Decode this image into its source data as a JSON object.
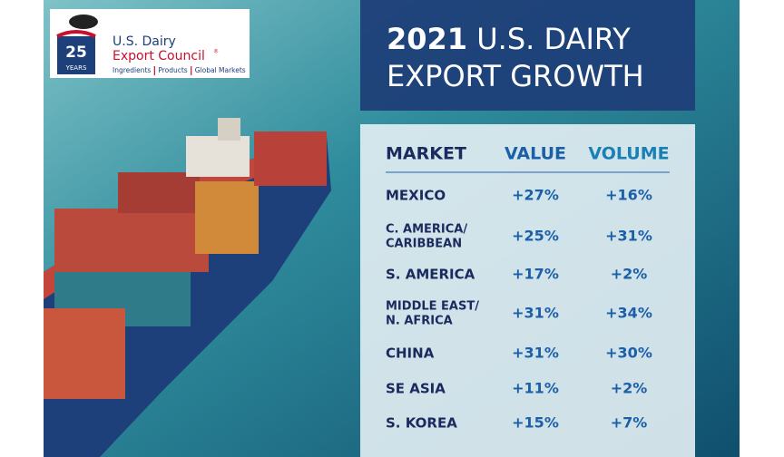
{
  "logo": {
    "years_number": "25",
    "years_word": "YEARS",
    "name_line1": "U.S. Dairy",
    "name_line2": "Export Council",
    "registered": "®",
    "tagline": [
      "Ingredients",
      "Products",
      "Global Markets"
    ]
  },
  "title": {
    "year": "2021",
    "line1": "U.S. DAIRY",
    "line2": "EXPORT GROWTH"
  },
  "table": {
    "header": [
      "MARKET",
      "VALUE",
      "VOLUME"
    ],
    "rows": [
      [
        [
          "MEXICO"
        ],
        "+27%",
        "+16%"
      ],
      [
        [
          "C. AMERICA/",
          "CARIBBEAN"
        ],
        "+25%",
        "+31%"
      ],
      [
        [
          "S. AMERICA"
        ],
        "+17%",
        "+2%"
      ],
      [
        [
          "MIDDLE EAST/",
          "N. AFRICA"
        ],
        "+31%",
        "+34%"
      ],
      [
        [
          "CHINA"
        ],
        "+31%",
        "+30%"
      ],
      [
        [
          "SE ASIA"
        ],
        "+11%",
        "+2%"
      ],
      [
        [
          "S. KOREA"
        ],
        "+15%",
        "+7%"
      ]
    ]
  }
}
